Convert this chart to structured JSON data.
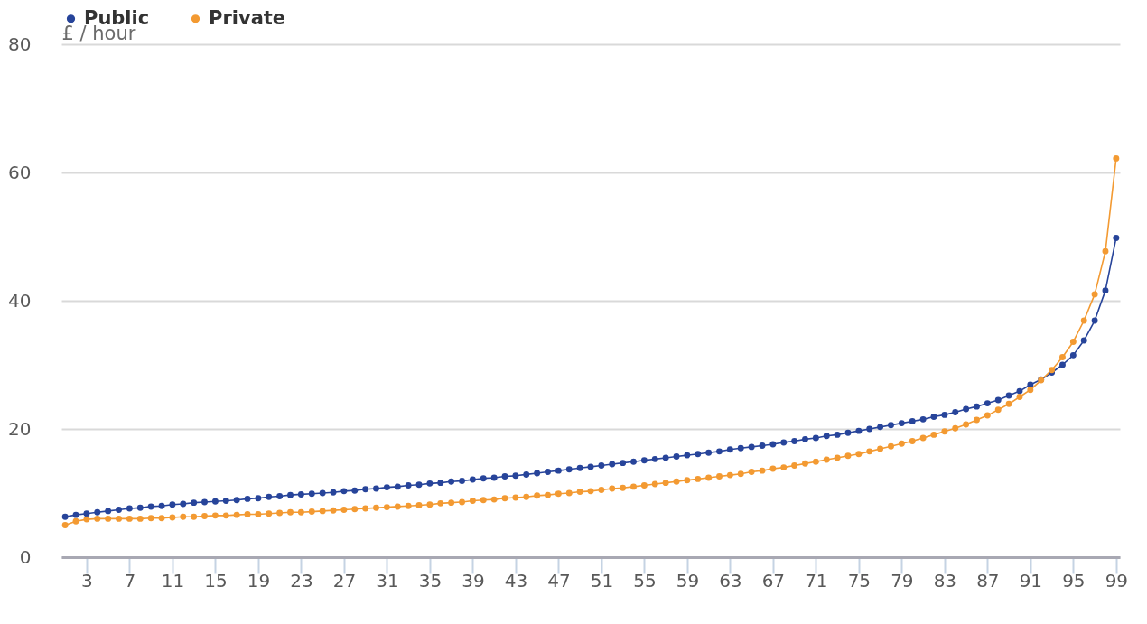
{
  "chart_data": {
    "type": "line",
    "ylabel": "£ / hour",
    "categories": [
      null,
      null,
      "3",
      null,
      null,
      null,
      "7",
      null,
      null,
      null,
      "11",
      null,
      null,
      null,
      "15",
      null,
      null,
      null,
      "19",
      null,
      null,
      null,
      "23",
      null,
      null,
      null,
      "27",
      null,
      null,
      null,
      "31",
      null,
      null,
      null,
      "35",
      null,
      null,
      null,
      "39",
      null,
      null,
      null,
      "43",
      null,
      null,
      null,
      "47",
      null,
      null,
      null,
      "51",
      null,
      null,
      null,
      "55",
      null,
      null,
      null,
      "59",
      null,
      null,
      null,
      "63",
      null,
      null,
      null,
      "67",
      null,
      null,
      null,
      "71",
      null,
      null,
      null,
      "75",
      null,
      null,
      null,
      "79",
      null,
      null,
      null,
      "83",
      null,
      null,
      null,
      "87",
      null,
      null,
      null,
      "91",
      null,
      null,
      null,
      "95",
      null,
      null,
      null,
      "99"
    ],
    "series": [
      {
        "name": "Public",
        "color": "#27449a",
        "values": [
          6.3,
          6.6,
          6.8,
          7.0,
          7.2,
          7.4,
          7.6,
          7.7,
          7.9,
          8.0,
          8.2,
          8.3,
          8.5,
          8.6,
          8.7,
          8.8,
          8.9,
          9.1,
          9.2,
          9.4,
          9.5,
          9.7,
          9.8,
          9.9,
          10.0,
          10.1,
          10.3,
          10.4,
          10.6,
          10.7,
          10.9,
          11.0,
          11.2,
          11.3,
          11.5,
          11.6,
          11.8,
          11.9,
          12.1,
          12.3,
          12.4,
          12.6,
          12.7,
          12.9,
          13.1,
          13.3,
          13.5,
          13.7,
          13.9,
          14.1,
          14.3,
          14.5,
          14.7,
          14.9,
          15.1,
          15.3,
          15.5,
          15.7,
          15.9,
          16.1,
          16.3,
          16.5,
          16.8,
          17.0,
          17.2,
          17.4,
          17.6,
          17.9,
          18.1,
          18.4,
          18.6,
          18.9,
          19.1,
          19.4,
          19.7,
          20.0,
          20.3,
          20.6,
          20.9,
          21.2,
          21.5,
          21.9,
          22.2,
          22.6,
          23.1,
          23.5,
          24.0,
          24.5,
          25.2,
          25.9,
          26.9,
          27.7,
          28.8,
          30.0,
          31.5,
          33.8,
          36.9,
          41.6,
          49.8
        ]
      },
      {
        "name": "Private",
        "color": "#f39a32",
        "values": [
          5.0,
          5.6,
          5.9,
          6.0,
          6.0,
          6.0,
          6.0,
          6.0,
          6.1,
          6.1,
          6.2,
          6.3,
          6.3,
          6.4,
          6.5,
          6.5,
          6.6,
          6.7,
          6.7,
          6.8,
          6.9,
          7.0,
          7.0,
          7.1,
          7.2,
          7.3,
          7.4,
          7.5,
          7.6,
          7.7,
          7.8,
          7.9,
          8.0,
          8.1,
          8.2,
          8.4,
          8.5,
          8.6,
          8.8,
          8.9,
          9.0,
          9.2,
          9.3,
          9.4,
          9.6,
          9.7,
          9.9,
          10.0,
          10.2,
          10.3,
          10.5,
          10.7,
          10.8,
          11.0,
          11.2,
          11.4,
          11.6,
          11.8,
          12.0,
          12.2,
          12.4,
          12.6,
          12.8,
          13.0,
          13.3,
          13.5,
          13.8,
          14.0,
          14.3,
          14.6,
          14.9,
          15.2,
          15.5,
          15.8,
          16.1,
          16.5,
          16.9,
          17.3,
          17.7,
          18.1,
          18.6,
          19.1,
          19.6,
          20.1,
          20.7,
          21.4,
          22.1,
          23.0,
          23.9,
          25.0,
          26.1,
          27.6,
          29.2,
          31.2,
          33.6,
          36.9,
          41.0,
          47.7,
          62.2
        ]
      }
    ],
    "ylim": [
      0,
      80
    ],
    "yticks": [
      0,
      20,
      40,
      60,
      80
    ],
    "grid": "y",
    "legend": "top",
    "marker": "circle",
    "line_style": "solid"
  }
}
